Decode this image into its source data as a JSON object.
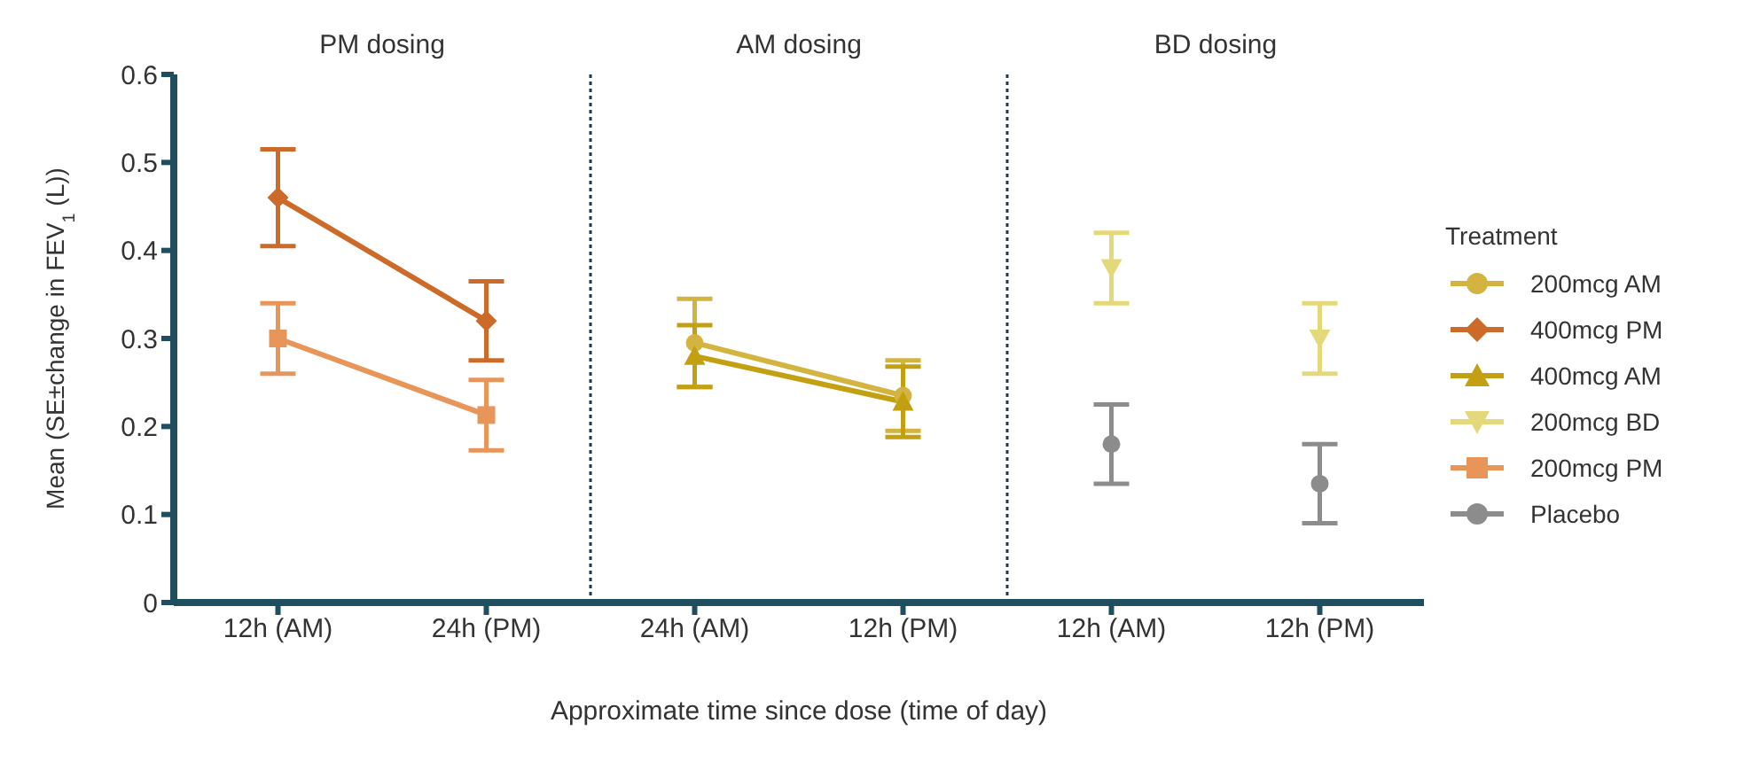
{
  "chart_data": {
    "type": "line",
    "xlabel": "Approximate time since dose (time of day)",
    "ylabel": "Mean (SE±change in FEV$_{1}$ (L))",
    "legend_title": "Treatment",
    "legend": "right",
    "categories": [
      "12h (AM)",
      "24h (PM)",
      "24h (AM)",
      "12h (PM)",
      "12h (AM)",
      "12h (PM)"
    ],
    "annotations": [
      "PM dosing",
      "AM dosing",
      "BD dosing"
    ],
    "ylim": [
      0,
      0.6
    ],
    "yticks": [
      0,
      0.1,
      0.2,
      0.3,
      0.4,
      0.5,
      0.6
    ],
    "grid": false,
    "series": [
      {
        "name": "200mcg AM",
        "color": "#d4b440",
        "marker": "circle",
        "values": [
          null,
          null,
          0.295,
          0.235,
          null,
          null
        ],
        "errors": [
          null,
          null,
          0.05,
          0.04,
          null,
          null
        ]
      },
      {
        "name": "400mcg PM",
        "color": "#cc6a2a",
        "marker": "diamond",
        "values": [
          0.46,
          0.32,
          null,
          null,
          null,
          null
        ],
        "errors": [
          0.055,
          0.045,
          null,
          null,
          null,
          null
        ]
      },
      {
        "name": "400mcg AM",
        "color": "#c2a012",
        "marker": "triangle",
        "values": [
          null,
          null,
          0.28,
          0.228,
          null,
          null
        ],
        "errors": [
          null,
          null,
          0.035,
          0.04,
          null,
          null
        ]
      },
      {
        "name": "200mcg BD",
        "type": "scatter",
        "color": "#e3d97a",
        "marker": "triangle-down",
        "values": [
          null,
          null,
          null,
          null,
          0.38,
          0.3
        ],
        "errors": [
          null,
          null,
          null,
          null,
          0.04,
          0.04
        ]
      },
      {
        "name": "200mcg PM",
        "color": "#e8955a",
        "marker": "square",
        "values": [
          0.3,
          0.213,
          null,
          null,
          null,
          null
        ],
        "errors": [
          0.04,
          0.04,
          null,
          null,
          null,
          null
        ]
      },
      {
        "name": "Placebo",
        "type": "scatter",
        "color": "#8c8c8c",
        "marker": "circle",
        "values": [
          null,
          null,
          null,
          null,
          0.18,
          0.135
        ],
        "errors": [
          null,
          null,
          null,
          null,
          0.045,
          0.045
        ]
      }
    ]
  }
}
